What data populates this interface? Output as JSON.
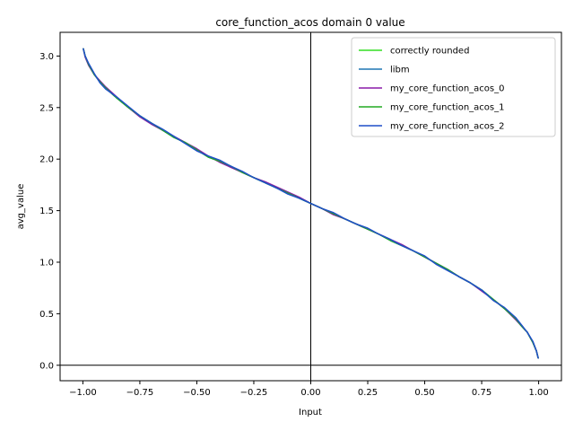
{
  "chart_data": {
    "type": "line",
    "title": "core_function_acos domain 0 value",
    "xlabel": "Input",
    "ylabel": "avg_value",
    "xlim": [
      -1.1,
      1.1
    ],
    "ylim": [
      -0.15,
      3.23
    ],
    "xticks": [
      -1.0,
      -0.75,
      -0.5,
      -0.25,
      0.0,
      0.25,
      0.5,
      0.75,
      1.0
    ],
    "xtick_labels": [
      "−1.00",
      "−0.75",
      "−0.50",
      "−0.25",
      "0.00",
      "0.25",
      "0.50",
      "0.75",
      "1.00"
    ],
    "yticks": [
      0.0,
      0.5,
      1.0,
      1.5,
      2.0,
      2.5,
      3.0
    ],
    "ytick_labels": [
      "0.0",
      "0.5",
      "1.0",
      "1.5",
      "2.0",
      "2.5",
      "3.0"
    ],
    "reference_lines": {
      "x": 0,
      "y": 0
    },
    "grid": false,
    "legend_position": "top-right",
    "x": [
      -0.998,
      -0.99,
      -0.975,
      -0.95,
      -0.925,
      -0.9,
      -0.85,
      -0.8,
      -0.75,
      -0.7,
      -0.65,
      -0.6,
      -0.55,
      -0.5,
      -0.45,
      -0.4,
      -0.35,
      -0.3,
      -0.25,
      -0.2,
      -0.15,
      -0.1,
      -0.05,
      0.0,
      0.05,
      0.1,
      0.15,
      0.2,
      0.25,
      0.3,
      0.35,
      0.4,
      0.45,
      0.5,
      0.55,
      0.6,
      0.65,
      0.7,
      0.75,
      0.8,
      0.85,
      0.9,
      0.925,
      0.95,
      0.975,
      0.99,
      0.998
    ],
    "series": [
      {
        "name": "correctly rounded",
        "color": "#33dd22",
        "width": 1.5,
        "values": [
          3.07,
          3.0,
          2.92,
          2.82,
          2.75,
          2.69,
          2.59,
          2.5,
          2.42,
          2.35,
          2.28,
          2.21,
          2.16,
          2.09,
          2.02,
          1.98,
          1.93,
          1.87,
          1.82,
          1.77,
          1.72,
          1.67,
          1.62,
          1.57,
          1.52,
          1.47,
          1.42,
          1.37,
          1.32,
          1.27,
          1.21,
          1.16,
          1.11,
          1.05,
          0.99,
          0.93,
          0.86,
          0.8,
          0.73,
          0.64,
          0.55,
          0.45,
          0.38,
          0.32,
          0.22,
          0.14,
          0.07
        ]
      },
      {
        "name": "libm",
        "color": "#1f77b4",
        "width": 1.5,
        "values": [
          3.07,
          3.0,
          2.92,
          2.82,
          2.75,
          2.69,
          2.59,
          2.5,
          2.42,
          2.35,
          2.28,
          2.21,
          2.16,
          2.09,
          2.02,
          1.98,
          1.93,
          1.87,
          1.82,
          1.77,
          1.72,
          1.67,
          1.62,
          1.57,
          1.52,
          1.47,
          1.42,
          1.37,
          1.32,
          1.27,
          1.21,
          1.16,
          1.11,
          1.05,
          0.99,
          0.93,
          0.86,
          0.8,
          0.73,
          0.64,
          0.55,
          0.45,
          0.38,
          0.32,
          0.22,
          0.14,
          0.07
        ]
      },
      {
        "name": "my_core_function_acos_0",
        "color": "#8a1aa8",
        "width": 1.5,
        "values": [
          3.07,
          2.99,
          2.91,
          2.82,
          2.76,
          2.7,
          2.6,
          2.5,
          2.41,
          2.34,
          2.28,
          2.22,
          2.16,
          2.1,
          2.03,
          1.97,
          1.92,
          1.87,
          1.82,
          1.78,
          1.73,
          1.68,
          1.63,
          1.57,
          1.52,
          1.46,
          1.42,
          1.37,
          1.32,
          1.27,
          1.22,
          1.17,
          1.11,
          1.05,
          0.99,
          0.93,
          0.86,
          0.8,
          0.72,
          0.64,
          0.55,
          0.44,
          0.38,
          0.32,
          0.22,
          0.14,
          0.07
        ]
      },
      {
        "name": "my_core_function_acos_1",
        "color": "#22aa22",
        "width": 1.5,
        "values": [
          3.07,
          3.0,
          2.92,
          2.82,
          2.75,
          2.69,
          2.59,
          2.5,
          2.42,
          2.35,
          2.28,
          2.21,
          2.16,
          2.09,
          2.02,
          1.98,
          1.93,
          1.87,
          1.82,
          1.77,
          1.72,
          1.67,
          1.62,
          1.57,
          1.52,
          1.47,
          1.42,
          1.37,
          1.32,
          1.27,
          1.21,
          1.16,
          1.11,
          1.05,
          0.99,
          0.93,
          0.86,
          0.8,
          0.73,
          0.64,
          0.55,
          0.45,
          0.38,
          0.32,
          0.22,
          0.14,
          0.07
        ]
      },
      {
        "name": "my_core_function_acos_2",
        "color": "#1f4fc8",
        "width": 1.5,
        "values": [
          3.07,
          3.0,
          2.93,
          2.83,
          2.74,
          2.68,
          2.6,
          2.51,
          2.42,
          2.35,
          2.29,
          2.22,
          2.15,
          2.08,
          2.03,
          1.99,
          1.93,
          1.88,
          1.82,
          1.77,
          1.72,
          1.66,
          1.62,
          1.57,
          1.52,
          1.48,
          1.42,
          1.37,
          1.33,
          1.27,
          1.22,
          1.16,
          1.11,
          1.06,
          0.98,
          0.92,
          0.86,
          0.8,
          0.73,
          0.63,
          0.56,
          0.46,
          0.39,
          0.32,
          0.23,
          0.14,
          0.07
        ]
      }
    ]
  }
}
